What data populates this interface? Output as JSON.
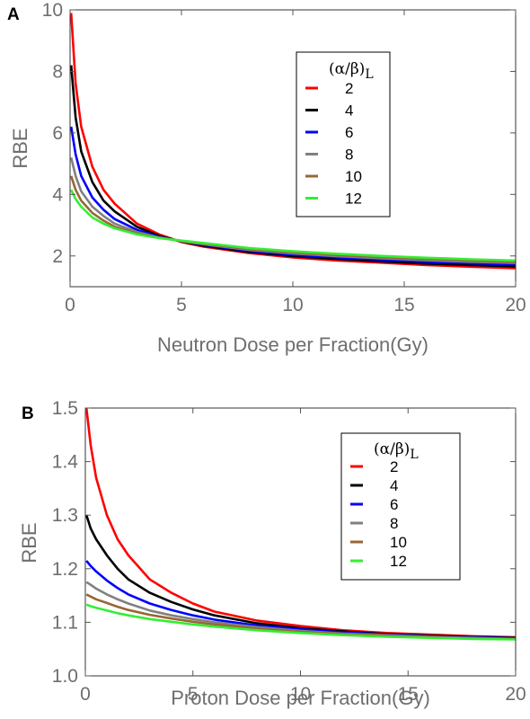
{
  "chart_data": [
    {
      "type": "line",
      "panel_label": "A",
      "xlabel": "Neutron Dose per Fraction(Gy)",
      "ylabel": "RBE",
      "xlim": [
        0,
        20
      ],
      "ylim": [
        1,
        10
      ],
      "xticks": [
        0,
        5,
        10,
        15,
        20
      ],
      "yticks": [
        2,
        4,
        6,
        8,
        10
      ],
      "legend_title": "(α/β)",
      "legend_title_sub": "L",
      "legend_position": "top-right",
      "series": [
        {
          "name": "2",
          "color": "#ff0000",
          "x": [
            0.05,
            0.25,
            0.5,
            1,
            1.5,
            2,
            3,
            4,
            5,
            6,
            8,
            10,
            12,
            14,
            16,
            18,
            20
          ],
          "y": [
            9.9,
            7.6,
            6.2,
            4.9,
            4.15,
            3.7,
            3.05,
            2.7,
            2.45,
            2.3,
            2.1,
            1.95,
            1.85,
            1.78,
            1.7,
            1.65,
            1.6
          ]
        },
        {
          "name": "4",
          "color": "#000000",
          "x": [
            0.05,
            0.25,
            0.5,
            1,
            1.5,
            2,
            3,
            4,
            5,
            6,
            8,
            10,
            12,
            14,
            16,
            18,
            20
          ],
          "y": [
            8.2,
            6.5,
            5.4,
            4.4,
            3.8,
            3.45,
            2.95,
            2.65,
            2.47,
            2.33,
            2.13,
            1.99,
            1.9,
            1.82,
            1.75,
            1.7,
            1.66
          ]
        },
        {
          "name": "6",
          "color": "#0000ff",
          "x": [
            0.05,
            0.25,
            0.5,
            1,
            1.5,
            2,
            3,
            4,
            5,
            6,
            8,
            10,
            12,
            14,
            16,
            18,
            20
          ],
          "y": [
            6.2,
            5.3,
            4.6,
            3.9,
            3.5,
            3.2,
            2.85,
            2.62,
            2.48,
            2.36,
            2.17,
            2.04,
            1.95,
            1.88,
            1.81,
            1.76,
            1.72
          ]
        },
        {
          "name": "8",
          "color": "#808080",
          "x": [
            0.05,
            0.25,
            0.5,
            1,
            1.5,
            2,
            3,
            4,
            5,
            6,
            8,
            10,
            12,
            14,
            16,
            18,
            20
          ],
          "y": [
            5.2,
            4.6,
            4.1,
            3.6,
            3.3,
            3.05,
            2.78,
            2.6,
            2.48,
            2.38,
            2.2,
            2.08,
            1.99,
            1.92,
            1.86,
            1.81,
            1.77
          ]
        },
        {
          "name": "10",
          "color": "#996633",
          "x": [
            0.05,
            0.25,
            0.5,
            1,
            1.5,
            2,
            3,
            4,
            5,
            6,
            8,
            10,
            12,
            14,
            16,
            18,
            20
          ],
          "y": [
            4.6,
            4.15,
            3.8,
            3.4,
            3.15,
            2.95,
            2.73,
            2.59,
            2.49,
            2.4,
            2.23,
            2.12,
            2.03,
            1.96,
            1.9,
            1.85,
            1.81
          ]
        },
        {
          "name": "12",
          "color": "#33ee33",
          "x": [
            0.05,
            0.25,
            0.5,
            1,
            1.5,
            2,
            3,
            4,
            5,
            6,
            8,
            10,
            12,
            14,
            16,
            18,
            20
          ],
          "y": [
            4.15,
            3.85,
            3.6,
            3.25,
            3.05,
            2.9,
            2.7,
            2.58,
            2.5,
            2.42,
            2.26,
            2.15,
            2.07,
            2.0,
            1.94,
            1.89,
            1.85
          ]
        }
      ]
    },
    {
      "type": "line",
      "panel_label": "B",
      "xlabel": "Proton Dose per Fraction(Gy)",
      "ylabel": "RBE",
      "xlim": [
        0,
        20
      ],
      "ylim": [
        1.0,
        1.5
      ],
      "xticks": [
        0,
        5,
        10,
        15,
        20
      ],
      "yticks": [
        1.0,
        1.1,
        1.2,
        1.3,
        1.4,
        1.5
      ],
      "legend_title": "(α/β)",
      "legend_title_sub": "L",
      "legend_position": "top-right",
      "series": [
        {
          "name": "2",
          "color": "#ff0000",
          "x": [
            0.05,
            0.25,
            0.5,
            1,
            1.5,
            2,
            3,
            4,
            5,
            6,
            8,
            10,
            12,
            14,
            16,
            18,
            20
          ],
          "y": [
            1.5,
            1.43,
            1.37,
            1.3,
            1.255,
            1.225,
            1.18,
            1.155,
            1.135,
            1.12,
            1.103,
            1.093,
            1.085,
            1.08,
            1.077,
            1.074,
            1.072
          ]
        },
        {
          "name": "4",
          "color": "#000000",
          "x": [
            0.05,
            0.25,
            0.5,
            1,
            1.5,
            2,
            3,
            4,
            5,
            6,
            8,
            10,
            12,
            14,
            16,
            18,
            20
          ],
          "y": [
            1.3,
            1.275,
            1.255,
            1.225,
            1.2,
            1.18,
            1.155,
            1.138,
            1.124,
            1.113,
            1.098,
            1.089,
            1.083,
            1.078,
            1.075,
            1.073,
            1.071
          ]
        },
        {
          "name": "6",
          "color": "#0000ff",
          "x": [
            0.05,
            0.25,
            0.5,
            1,
            1.5,
            2,
            3,
            4,
            5,
            6,
            8,
            10,
            12,
            14,
            16,
            18,
            20
          ],
          "y": [
            1.215,
            1.205,
            1.195,
            1.178,
            1.164,
            1.152,
            1.135,
            1.123,
            1.113,
            1.105,
            1.094,
            1.087,
            1.081,
            1.077,
            1.074,
            1.072,
            1.07
          ]
        },
        {
          "name": "8",
          "color": "#808080",
          "x": [
            0.05,
            0.25,
            0.5,
            1,
            1.5,
            2,
            3,
            4,
            5,
            6,
            8,
            10,
            12,
            14,
            16,
            18,
            20
          ],
          "y": [
            1.175,
            1.17,
            1.163,
            1.152,
            1.143,
            1.135,
            1.122,
            1.113,
            1.106,
            1.1,
            1.091,
            1.084,
            1.079,
            1.076,
            1.073,
            1.071,
            1.069
          ]
        },
        {
          "name": "10",
          "color": "#996633",
          "x": [
            0.05,
            0.25,
            0.5,
            1,
            1.5,
            2,
            3,
            4,
            5,
            6,
            8,
            10,
            12,
            14,
            16,
            18,
            20
          ],
          "y": [
            1.152,
            1.148,
            1.143,
            1.136,
            1.129,
            1.123,
            1.114,
            1.107,
            1.101,
            1.096,
            1.088,
            1.082,
            1.078,
            1.075,
            1.072,
            1.07,
            1.069
          ]
        },
        {
          "name": "12",
          "color": "#33ee33",
          "x": [
            0.05,
            0.25,
            0.5,
            1,
            1.5,
            2,
            3,
            4,
            5,
            6,
            8,
            10,
            12,
            14,
            16,
            18,
            20
          ],
          "y": [
            1.133,
            1.13,
            1.127,
            1.122,
            1.117,
            1.113,
            1.106,
            1.101,
            1.096,
            1.092,
            1.085,
            1.08,
            1.076,
            1.073,
            1.071,
            1.069,
            1.068
          ]
        }
      ]
    }
  ]
}
